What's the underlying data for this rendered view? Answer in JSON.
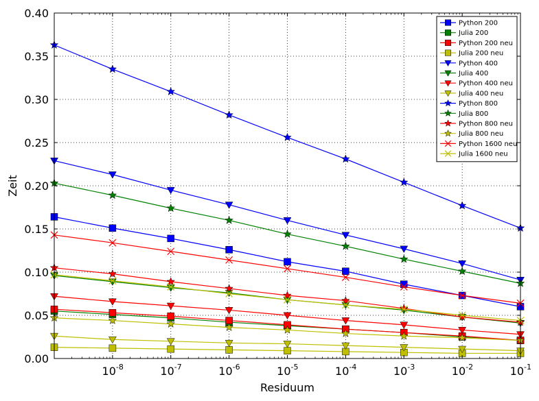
{
  "chart_data": {
    "type": "line",
    "xlabel": "Residuum",
    "ylabel": "Zeit",
    "x_scale": "log",
    "x": [
      1e-09,
      1e-08,
      1e-07,
      1e-06,
      1e-05,
      0.0001,
      0.001,
      0.01,
      0.1
    ],
    "xlim": [
      1e-09,
      0.1
    ],
    "ylim": [
      0.0,
      0.4
    ],
    "x_ticks": [
      1e-08,
      1e-07,
      1e-06,
      1e-05,
      0.0001,
      0.001,
      0.01,
      0.1
    ],
    "x_tick_base": "10",
    "x_tick_exponents": [
      "-8",
      "-7",
      "-6",
      "-5",
      "-4",
      "-3",
      "-2",
      "-1"
    ],
    "y_ticks": [
      0.0,
      0.05,
      0.1,
      0.15,
      0.2,
      0.25,
      0.3,
      0.35,
      0.4
    ],
    "y_tick_labels": [
      "0.00",
      "0.05",
      "0.10",
      "0.15",
      "0.20",
      "0.25",
      "0.30",
      "0.35",
      "0.40"
    ],
    "grid": true,
    "legend_position": "top-right",
    "series": [
      {
        "name": "Python 200",
        "color": "#0000ff",
        "marker": "square",
        "values": [
          0.164,
          0.151,
          0.139,
          0.126,
          0.112,
          0.101,
          0.086,
          0.073,
          0.06
        ]
      },
      {
        "name": "Julia 200",
        "color": "#008000",
        "marker": "square",
        "values": [
          0.055,
          0.051,
          0.047,
          0.042,
          0.038,
          0.034,
          0.03,
          0.025,
          0.021
        ]
      },
      {
        "name": "Python 200 neu",
        "color": "#ff0000",
        "marker": "square",
        "values": [
          0.057,
          0.053,
          0.049,
          0.044,
          0.039,
          0.034,
          0.03,
          0.026,
          0.021
        ]
      },
      {
        "name": "Julia 200 neu",
        "color": "#bfbf00",
        "marker": "square",
        "values": [
          0.013,
          0.012,
          0.011,
          0.01,
          0.009,
          0.008,
          0.007,
          0.006,
          0.006
        ]
      },
      {
        "name": "Python 400",
        "color": "#0000ff",
        "marker": "triangle-down",
        "values": [
          0.229,
          0.213,
          0.195,
          0.178,
          0.16,
          0.143,
          0.127,
          0.11,
          0.091
        ]
      },
      {
        "name": "Julia 400",
        "color": "#008000",
        "marker": "triangle-down",
        "values": [
          0.096,
          0.089,
          0.082,
          0.076,
          0.068,
          0.062,
          0.056,
          0.048,
          0.041
        ]
      },
      {
        "name": "Python 400 neu",
        "color": "#ff0000",
        "marker": "triangle-down",
        "values": [
          0.072,
          0.066,
          0.061,
          0.056,
          0.05,
          0.044,
          0.039,
          0.033,
          0.028
        ]
      },
      {
        "name": "Julia 400 neu",
        "color": "#bfbf00",
        "marker": "triangle-down",
        "values": [
          0.026,
          0.022,
          0.02,
          0.018,
          0.017,
          0.015,
          0.013,
          0.011,
          0.009
        ]
      },
      {
        "name": "Python 800",
        "color": "#0000ff",
        "marker": "star",
        "values": [
          0.363,
          0.335,
          0.309,
          0.282,
          0.256,
          0.231,
          0.204,
          0.177,
          0.151
        ]
      },
      {
        "name": "Julia 800",
        "color": "#008000",
        "marker": "star",
        "values": [
          0.203,
          0.189,
          0.174,
          0.16,
          0.144,
          0.13,
          0.115,
          0.101,
          0.087
        ]
      },
      {
        "name": "Python 800 neu",
        "color": "#ff0000",
        "marker": "star",
        "values": [
          0.105,
          0.098,
          0.089,
          0.081,
          0.073,
          0.067,
          0.058,
          0.048,
          0.042
        ]
      },
      {
        "name": "Julia 800 neu",
        "color": "#bfbf00",
        "marker": "star",
        "values": [
          0.047,
          0.044,
          0.04,
          0.036,
          0.033,
          0.029,
          0.026,
          0.024,
          0.021
        ]
      },
      {
        "name": "Python 1600 neu",
        "color": "#ff0000",
        "marker": "x",
        "values": [
          0.143,
          0.134,
          0.124,
          0.114,
          0.104,
          0.094,
          0.083,
          0.073,
          0.064
        ]
      },
      {
        "name": "Julia 1600 neu",
        "color": "#bfbf00",
        "marker": "x",
        "values": [
          0.097,
          0.09,
          0.083,
          0.075,
          0.068,
          0.062,
          0.057,
          0.05,
          0.044
        ]
      }
    ]
  }
}
